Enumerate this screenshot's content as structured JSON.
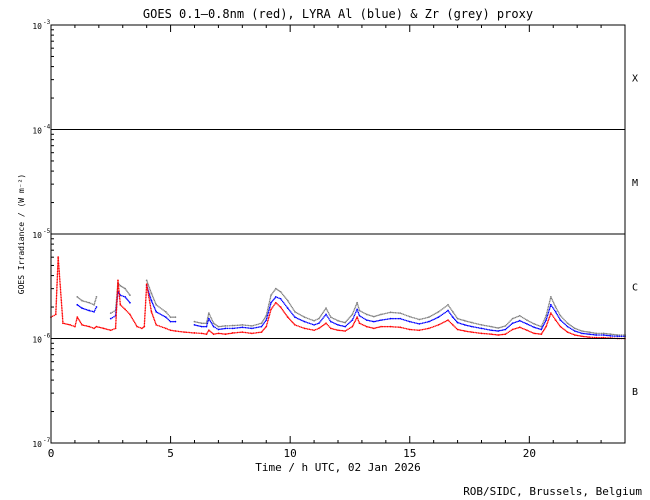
{
  "chart_data": {
    "type": "line",
    "title": "GOES 0.1—0.8nm (red), LYRA Al (blue) & Zr (grey) proxy",
    "xlabel": "Time / h UTC, 02 Jan 2026",
    "ylabel": "GOES Irradiance / (W m⁻²)",
    "xlim": [
      0,
      24
    ],
    "ylim": [
      1e-07,
      0.001
    ],
    "yscale": "log",
    "grid": false,
    "x_ticks": [
      {
        "value": 0,
        "label": "0"
      },
      {
        "value": 5,
        "label": "5"
      },
      {
        "value": 10,
        "label": "10"
      },
      {
        "value": 15,
        "label": "15"
      },
      {
        "value": 20,
        "label": "20"
      }
    ],
    "y_ticks": [
      {
        "exp": -3,
        "label_base": "10",
        "label_exp": "-3"
      },
      {
        "exp": -4,
        "label_base": "10",
        "label_exp": "-4"
      },
      {
        "exp": -5,
        "label_base": "10",
        "label_exp": "-5"
      },
      {
        "exp": -6,
        "label_base": "10",
        "label_exp": "-6"
      },
      {
        "exp": -7,
        "label_base": "10",
        "label_exp": "-7"
      }
    ],
    "flare_class_lines": [
      1e-06,
      1e-05,
      0.0001
    ],
    "flare_classes": [
      {
        "label": "X",
        "y": 0.000316
      },
      {
        "label": "M",
        "y": 3.16e-05
      },
      {
        "label": "C",
        "y": 3.16e-06
      },
      {
        "label": "B",
        "y": 3.16e-07
      }
    ],
    "x": [
      0.0,
      0.2,
      0.3,
      0.5,
      0.8,
      1.0,
      1.1,
      1.3,
      1.6,
      1.8,
      1.9,
      2.2,
      2.5,
      2.7,
      2.8,
      2.9,
      3.1,
      3.3,
      3.6,
      3.8,
      3.9,
      4.0,
      4.2,
      4.4,
      4.8,
      5.0,
      5.2,
      5.6,
      6.0,
      6.3,
      6.5,
      6.6,
      6.8,
      7.0,
      7.3,
      7.6,
      8.0,
      8.4,
      8.8,
      9.0,
      9.2,
      9.4,
      9.6,
      9.9,
      10.2,
      10.6,
      11.0,
      11.2,
      11.5,
      11.7,
      12.0,
      12.3,
      12.6,
      12.8,
      12.9,
      13.2,
      13.5,
      13.8,
      14.2,
      14.6,
      15.0,
      15.4,
      15.8,
      16.2,
      16.6,
      16.8,
      17.0,
      17.3,
      17.6,
      18.0,
      18.4,
      18.7,
      19.0,
      19.3,
      19.6,
      19.9,
      20.2,
      20.5,
      20.7,
      20.9,
      21.1,
      21.3,
      21.6,
      21.9,
      22.2,
      22.5,
      22.8,
      23.1,
      23.4,
      23.7,
      24.0
    ],
    "series": [
      {
        "name": "GOES 0.1—0.8nm",
        "color": "#ff0000",
        "values": [
          1.6e-06,
          1.7e-06,
          6e-06,
          1.4e-06,
          1.35e-06,
          1.3e-06,
          1.6e-06,
          1.35e-06,
          1.3e-06,
          1.25e-06,
          1.3e-06,
          1.25e-06,
          1.2e-06,
          1.25e-06,
          3.6e-06,
          2.1e-06,
          1.9e-06,
          1.7e-06,
          1.3e-06,
          1.25e-06,
          1.3e-06,
          3.3e-06,
          1.8e-06,
          1.35e-06,
          1.25e-06,
          1.2e-06,
          1.18e-06,
          1.15e-06,
          1.13e-06,
          1.12e-06,
          1.1e-06,
          1.2e-06,
          1.1e-06,
          1.12e-06,
          1.1e-06,
          1.13e-06,
          1.15e-06,
          1.12e-06,
          1.15e-06,
          1.3e-06,
          1.9e-06,
          2.2e-06,
          2e-06,
          1.6e-06,
          1.35e-06,
          1.25e-06,
          1.2e-06,
          1.25e-06,
          1.4e-06,
          1.25e-06,
          1.2e-06,
          1.18e-06,
          1.3e-06,
          1.6e-06,
          1.4e-06,
          1.3e-06,
          1.25e-06,
          1.3e-06,
          1.3e-06,
          1.28e-06,
          1.22e-06,
          1.2e-06,
          1.25e-06,
          1.35e-06,
          1.5e-06,
          1.35e-06,
          1.22e-06,
          1.18e-06,
          1.15e-06,
          1.12e-06,
          1.1e-06,
          1.08e-06,
          1.1e-06,
          1.22e-06,
          1.28e-06,
          1.2e-06,
          1.12e-06,
          1.1e-06,
          1.3e-06,
          1.75e-06,
          1.5e-06,
          1.3e-06,
          1.15e-06,
          1.08e-06,
          1.05e-06,
          1.03e-06,
          1.02e-06,
          1.02e-06,
          1.01e-06,
          1e-06,
          1e-06
        ]
      },
      {
        "name": "LYRA Al",
        "color": "#0000ff",
        "values": [
          null,
          null,
          null,
          null,
          null,
          null,
          2.1e-06,
          1.95e-06,
          1.85e-06,
          1.8e-06,
          2e-06,
          null,
          1.55e-06,
          1.65e-06,
          2.8e-06,
          2.6e-06,
          2.5e-06,
          2.2e-06,
          null,
          null,
          null,
          3.2e-06,
          2.3e-06,
          1.8e-06,
          1.6e-06,
          1.45e-06,
          1.45e-06,
          null,
          1.35e-06,
          1.3e-06,
          1.3e-06,
          1.55e-06,
          1.3e-06,
          1.22e-06,
          1.25e-06,
          1.25e-06,
          1.28e-06,
          1.25e-06,
          1.3e-06,
          1.5e-06,
          2.2e-06,
          2.5e-06,
          2.4e-06,
          1.95e-06,
          1.6e-06,
          1.45e-06,
          1.35e-06,
          1.4e-06,
          1.7e-06,
          1.45e-06,
          1.35e-06,
          1.3e-06,
          1.5e-06,
          1.9e-06,
          1.65e-06,
          1.5e-06,
          1.45e-06,
          1.5e-06,
          1.55e-06,
          1.55e-06,
          1.45e-06,
          1.38e-06,
          1.45e-06,
          1.6e-06,
          1.85e-06,
          1.6e-06,
          1.42e-06,
          1.35e-06,
          1.3e-06,
          1.25e-06,
          1.2e-06,
          1.18e-06,
          1.22e-06,
          1.4e-06,
          1.48e-06,
          1.38e-06,
          1.28e-06,
          1.22e-06,
          1.5e-06,
          2.1e-06,
          1.8e-06,
          1.5e-06,
          1.3e-06,
          1.18e-06,
          1.12e-06,
          1.1e-06,
          1.08e-06,
          1.08e-06,
          1.06e-06,
          1.05e-06,
          1.05e-06
        ]
      },
      {
        "name": "Zr",
        "color": "#808080",
        "values": [
          null,
          null,
          null,
          null,
          null,
          null,
          2.5e-06,
          2.3e-06,
          2.2e-06,
          2.1e-06,
          2.5e-06,
          null,
          1.75e-06,
          1.85e-06,
          3.4e-06,
          3.2e-06,
          3e-06,
          2.6e-06,
          null,
          null,
          null,
          3.6e-06,
          2.7e-06,
          2.1e-06,
          1.8e-06,
          1.6e-06,
          1.6e-06,
          null,
          1.45e-06,
          1.4e-06,
          1.4e-06,
          1.75e-06,
          1.4e-06,
          1.3e-06,
          1.32e-06,
          1.33e-06,
          1.35e-06,
          1.32e-06,
          1.4e-06,
          1.65e-06,
          2.6e-06,
          3e-06,
          2.8e-06,
          2.3e-06,
          1.8e-06,
          1.6e-06,
          1.48e-06,
          1.55e-06,
          1.95e-06,
          1.6e-06,
          1.48e-06,
          1.42e-06,
          1.7e-06,
          2.2e-06,
          1.85e-06,
          1.7e-06,
          1.62e-06,
          1.7e-06,
          1.78e-06,
          1.75e-06,
          1.62e-06,
          1.52e-06,
          1.6e-06,
          1.8e-06,
          2.1e-06,
          1.8e-06,
          1.55e-06,
          1.48e-06,
          1.42e-06,
          1.35e-06,
          1.3e-06,
          1.26e-06,
          1.32e-06,
          1.55e-06,
          1.65e-06,
          1.5e-06,
          1.38e-06,
          1.3e-06,
          1.65e-06,
          2.5e-06,
          2e-06,
          1.65e-06,
          1.4e-06,
          1.25e-06,
          1.18e-06,
          1.15e-06,
          1.12e-06,
          1.12e-06,
          1.1e-06,
          1.08e-06,
          1.08e-06
        ]
      }
    ]
  },
  "credit": "ROB/SIDC, Brussels, Belgium"
}
